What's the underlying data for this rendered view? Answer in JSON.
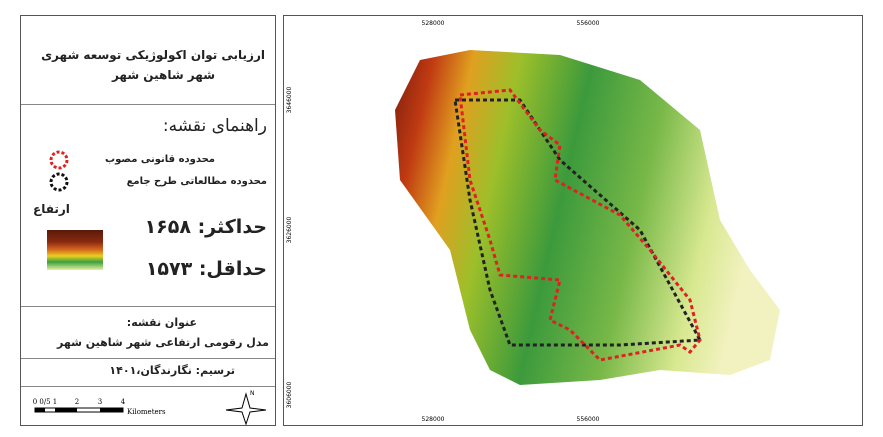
{
  "map_title": {
    "line1": "ارزیابی توان اکولوژیکی توسعه شهری",
    "line2": "شهر شاهین شهر"
  },
  "legend": {
    "heading": "راهنمای نقشه:",
    "items": [
      {
        "label": "محدوده قانونی مصوب"
      },
      {
        "label": "محدوده مطالعاتی طرح جامع"
      }
    ],
    "elevation": {
      "title": "ارتفاع",
      "max": "حداکثر: ۱۶۵۸",
      "min": "حداقل: ۱۵۷۳"
    }
  },
  "map_name": {
    "heading": "عنوان نقشه:",
    "text": "مدل رقومی ارتفاعی شهر شاهین شهر"
  },
  "credit": "ترسیم: نگارندگان،۱۴۰۱",
  "scale_bar": {
    "labels": [
      "0",
      "0/5",
      "1",
      "2",
      "3",
      "4"
    ],
    "unit": "Kilometers"
  },
  "north": "N",
  "coordinates": {
    "top": [
      "528000",
      "556000"
    ],
    "bottom": [
      "528000",
      "556000"
    ],
    "left": [
      "3646000",
      "3626000",
      "3606000"
    ]
  }
}
